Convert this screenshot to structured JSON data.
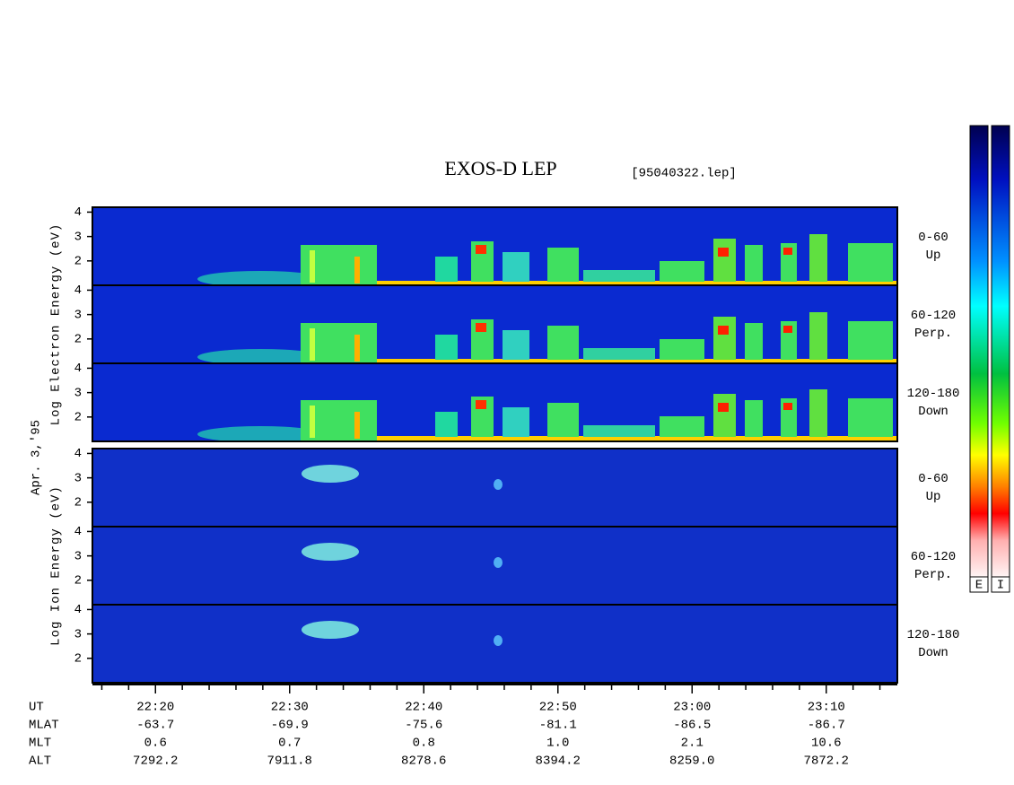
{
  "chart_data": {
    "type": "spectrogram",
    "title": "EXOS-D LEP",
    "subtitle": "[95040322.lep]",
    "date_label": "Apr. 3,'95",
    "xlim": [
      1335.3,
      1395.3
    ],
    "xticks": [
      {
        "value": 1340,
        "label": "22:20"
      },
      {
        "value": 1350,
        "label": "22:30"
      },
      {
        "value": 1360,
        "label": "22:40"
      },
      {
        "value": 1370,
        "label": "22:50"
      },
      {
        "value": 1380,
        "label": "23:00"
      },
      {
        "value": 1390,
        "label": "23:10"
      }
    ],
    "xminorticks": [
      1336,
      1338,
      1342,
      1344,
      1346,
      1348,
      1352,
      1354,
      1356,
      1358,
      1362,
      1364,
      1366,
      1368,
      1372,
      1374,
      1376,
      1378,
      1382,
      1384,
      1386,
      1388,
      1392,
      1394
    ],
    "ylim": [
      1,
      4.2
    ],
    "yticks": [
      2,
      3,
      4
    ],
    "groups": [
      {
        "ylabel": "Log Electron Energy (eV)",
        "panels": [
          [
            "0-60",
            "Up"
          ],
          [
            "60-120",
            "Perp."
          ],
          [
            "120-180",
            "Down"
          ]
        ]
      },
      {
        "ylabel": "Log Ion Energy (eV)",
        "panels": [
          [
            "0-60",
            "Up"
          ],
          [
            "60-120",
            "Perp."
          ],
          [
            "120-180",
            "Down"
          ]
        ]
      }
    ],
    "colorbars": [
      "E",
      "I"
    ],
    "ephemeris": {
      "labels": [
        "UT",
        "MLAT",
        "MLT",
        "ALT"
      ],
      "rows": [
        [
          "-63.7",
          "-69.9",
          "-75.6",
          "-81.1",
          "-86.5",
          "-86.7"
        ],
        [
          "0.6",
          "0.7",
          "0.8",
          "1.0",
          "2.1",
          "10.6"
        ],
        [
          "7292.2",
          "7911.8",
          "8278.6",
          "8394.2",
          "8259.0",
          "7872.2"
        ]
      ]
    }
  }
}
